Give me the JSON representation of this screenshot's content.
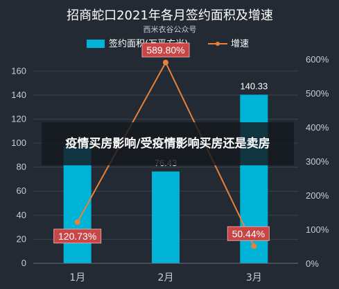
{
  "chart_data": {
    "type": "bar+line",
    "title": "招商蛇口2021年各月签约面积及增速",
    "subtitle": "西米衣谷公众号",
    "categories": [
      "1月",
      "2月",
      "3月"
    ],
    "series": [
      {
        "name": "签约面积(万平方米)",
        "type": "bar",
        "axis": "left",
        "values": [
          97.4,
          76.43,
          140.33
        ],
        "labels": [
          "",
          "76.43",
          "140.33"
        ],
        "color": "#00b4d8"
      },
      {
        "name": "增速",
        "type": "line",
        "axis": "right",
        "values": [
          120.73,
          589.8,
          50.44
        ],
        "labels": [
          "120.73%",
          "589.80%",
          "50.44%"
        ],
        "color": "#e8823a"
      }
    ],
    "y_left": {
      "ylim": [
        0,
        170
      ],
      "ticks": [
        "0",
        "20",
        "40",
        "60",
        "80",
        "100",
        "120",
        "140",
        "160"
      ]
    },
    "y_right": {
      "ylim": [
        0,
        600
      ],
      "ticks": [
        "0%",
        "100%",
        "200%",
        "300%",
        "400%",
        "500%",
        "600%"
      ]
    },
    "legend_position": "top",
    "grid": true
  },
  "overlay": {
    "text": "疫情买房影响/受疫情影响买房还是卖房"
  },
  "colors": {
    "background": "#232a33",
    "grid": "#3a434e",
    "axis_text": "#c8cdd4",
    "title": "#ffffff",
    "bar": "#00b4d8",
    "line": "#e8823a",
    "label_box": "#c84646"
  }
}
